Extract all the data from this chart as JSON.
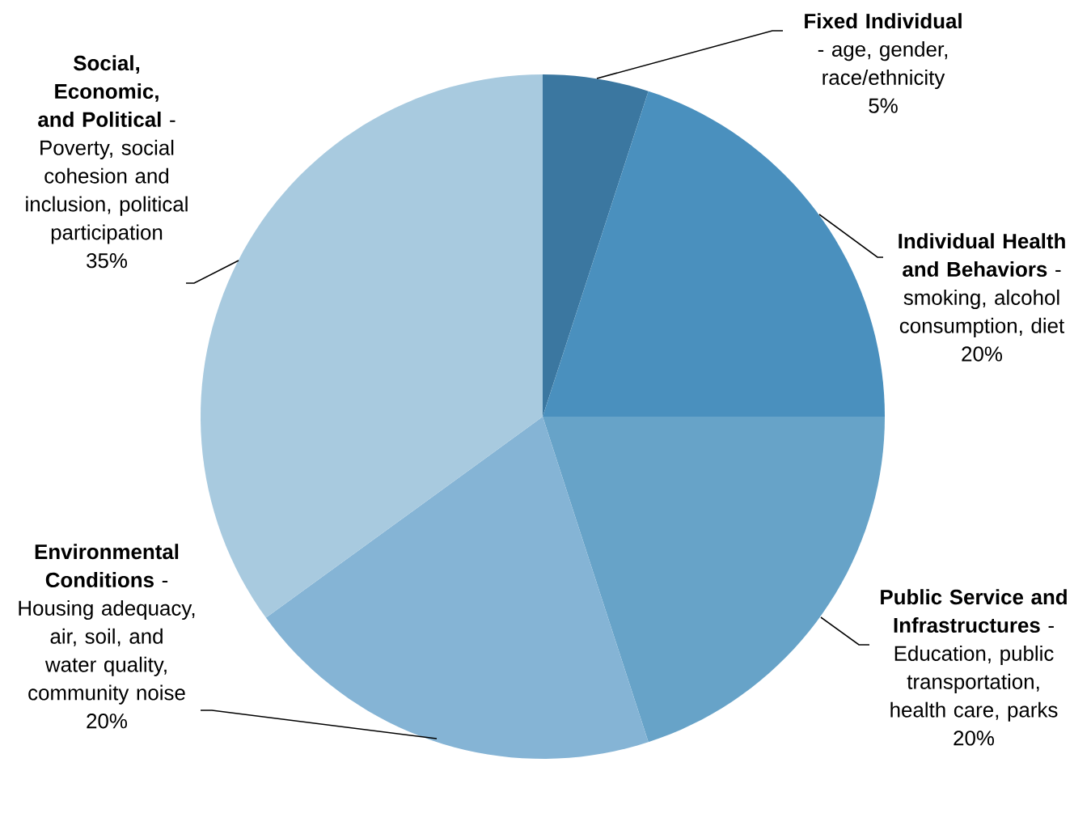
{
  "chart_data": {
    "type": "pie",
    "categories": [
      "**Fixed Individual** - age, gender, race/ethnicity",
      "**Individual Health and Behaviors** - smoking, alcohol consumption, diet",
      "**Public Service and Infrastructures** - Education, public transportation, health care, parks",
      "**Environmental Conditions** - Housing adequacy, air, soil, and water quality, community noise",
      "**Social, Economic, and Political** - Poverty, social cohesion and inclusion, political participation"
    ],
    "values": [
      5,
      20,
      20,
      20,
      35
    ],
    "value_labels": [
      "5%",
      "20%",
      "20%",
      "20%",
      "35%"
    ],
    "colors": [
      "#3b77a0",
      "#4a90be",
      "#67a3c8",
      "#85b4d5",
      "#a8cadf"
    ]
  }
}
